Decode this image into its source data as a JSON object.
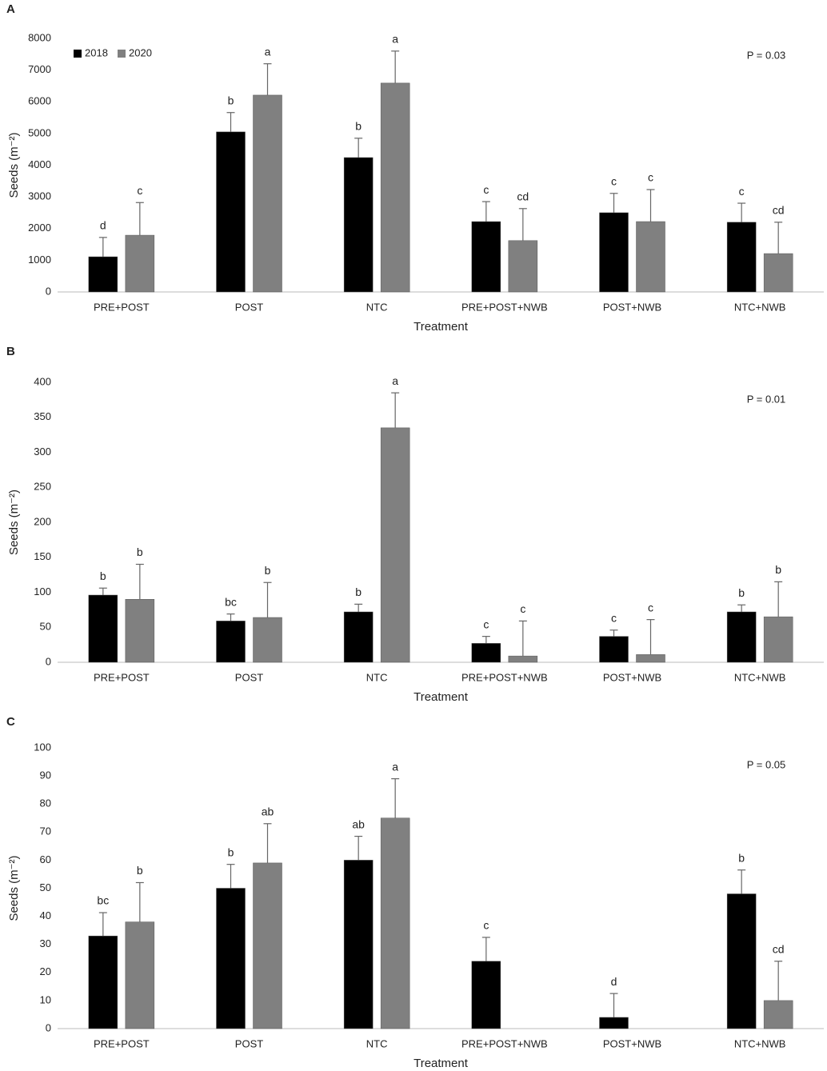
{
  "chart_data": [
    {
      "type": "bar",
      "panel": "A",
      "annotation": "P = 0.03",
      "xlabel": "Treatment",
      "ylabel": "Seeds (m⁻²)",
      "categories": [
        "PRE+POST",
        "POST",
        "NTC",
        "PRE+POST+NWB",
        "POST+NWB",
        "NTC+NWB"
      ],
      "series": [
        {
          "name": "2018",
          "color": "#000000",
          "values": [
            1110,
            5050,
            4240,
            2220,
            2500,
            2200
          ],
          "errors": [
            610,
            610,
            610,
            630,
            610,
            600
          ],
          "letters": [
            "d",
            "b",
            "b",
            "c",
            "c",
            "c"
          ]
        },
        {
          "name": "2020",
          "color": "#808080",
          "values": [
            1790,
            6210,
            6590,
            1620,
            2220,
            1210
          ],
          "errors": [
            1030,
            990,
            1010,
            1010,
            1010,
            990
          ],
          "letters": [
            "c",
            "a",
            "a",
            "cd",
            "c",
            "cd"
          ]
        }
      ],
      "ylim": [
        0,
        8000
      ],
      "yticks": [
        0,
        1000,
        2000,
        3000,
        4000,
        5000,
        6000,
        7000,
        8000
      ],
      "legend": "top-left"
    },
    {
      "type": "bar",
      "panel": "B",
      "annotation": "P = 0.01",
      "xlabel": "Treatment",
      "ylabel": "Seeds (m⁻²)",
      "categories": [
        "PRE+POST",
        "POST",
        "NTC",
        "PRE+POST+NWB",
        "POST+NWB",
        "NTC+NWB"
      ],
      "series": [
        {
          "color": "#000000",
          "values": [
            96,
            59,
            72,
            27,
            37,
            72
          ],
          "errors": [
            10,
            10,
            11,
            10,
            9,
            10
          ],
          "letters": [
            "b",
            "bc",
            "b",
            "c",
            "c",
            "b"
          ]
        },
        {
          "color": "#808080",
          "values": [
            90,
            64,
            335,
            9,
            11,
            65
          ],
          "errors": [
            50,
            50,
            50,
            50,
            50,
            50
          ],
          "letters": [
            "b",
            "b",
            "a",
            "c",
            "c",
            "b"
          ]
        }
      ],
      "ylim": [
        0,
        400
      ],
      "yticks": [
        0,
        50,
        100,
        150,
        200,
        250,
        300,
        350,
        400
      ]
    },
    {
      "type": "bar",
      "panel": "C",
      "annotation": "P = 0.05",
      "xlabel": "Treatment",
      "ylabel": "Seeds (m⁻²)",
      "categories": [
        "PRE+POST",
        "POST",
        "NTC",
        "PRE+POST+NWB",
        "POST+NWB",
        "NTC+NWB"
      ],
      "series": [
        {
          "color": "#000000",
          "values": [
            33,
            50,
            60,
            24,
            4,
            48
          ],
          "errors": [
            8.3,
            8.5,
            8.5,
            8.5,
            8.5,
            8.5
          ],
          "letters": [
            "bc",
            "b",
            "ab",
            "c",
            "d",
            "b"
          ]
        },
        {
          "color": "#808080",
          "values": [
            38,
            59,
            75,
            null,
            null,
            10
          ],
          "errors": [
            14,
            14,
            14,
            null,
            null,
            14
          ],
          "letters": [
            "b",
            "ab",
            "a",
            null,
            null,
            "cd"
          ]
        }
      ],
      "ylim": [
        0,
        100
      ],
      "yticks": [
        0,
        10,
        20,
        30,
        40,
        50,
        60,
        70,
        80,
        90,
        100
      ]
    }
  ]
}
